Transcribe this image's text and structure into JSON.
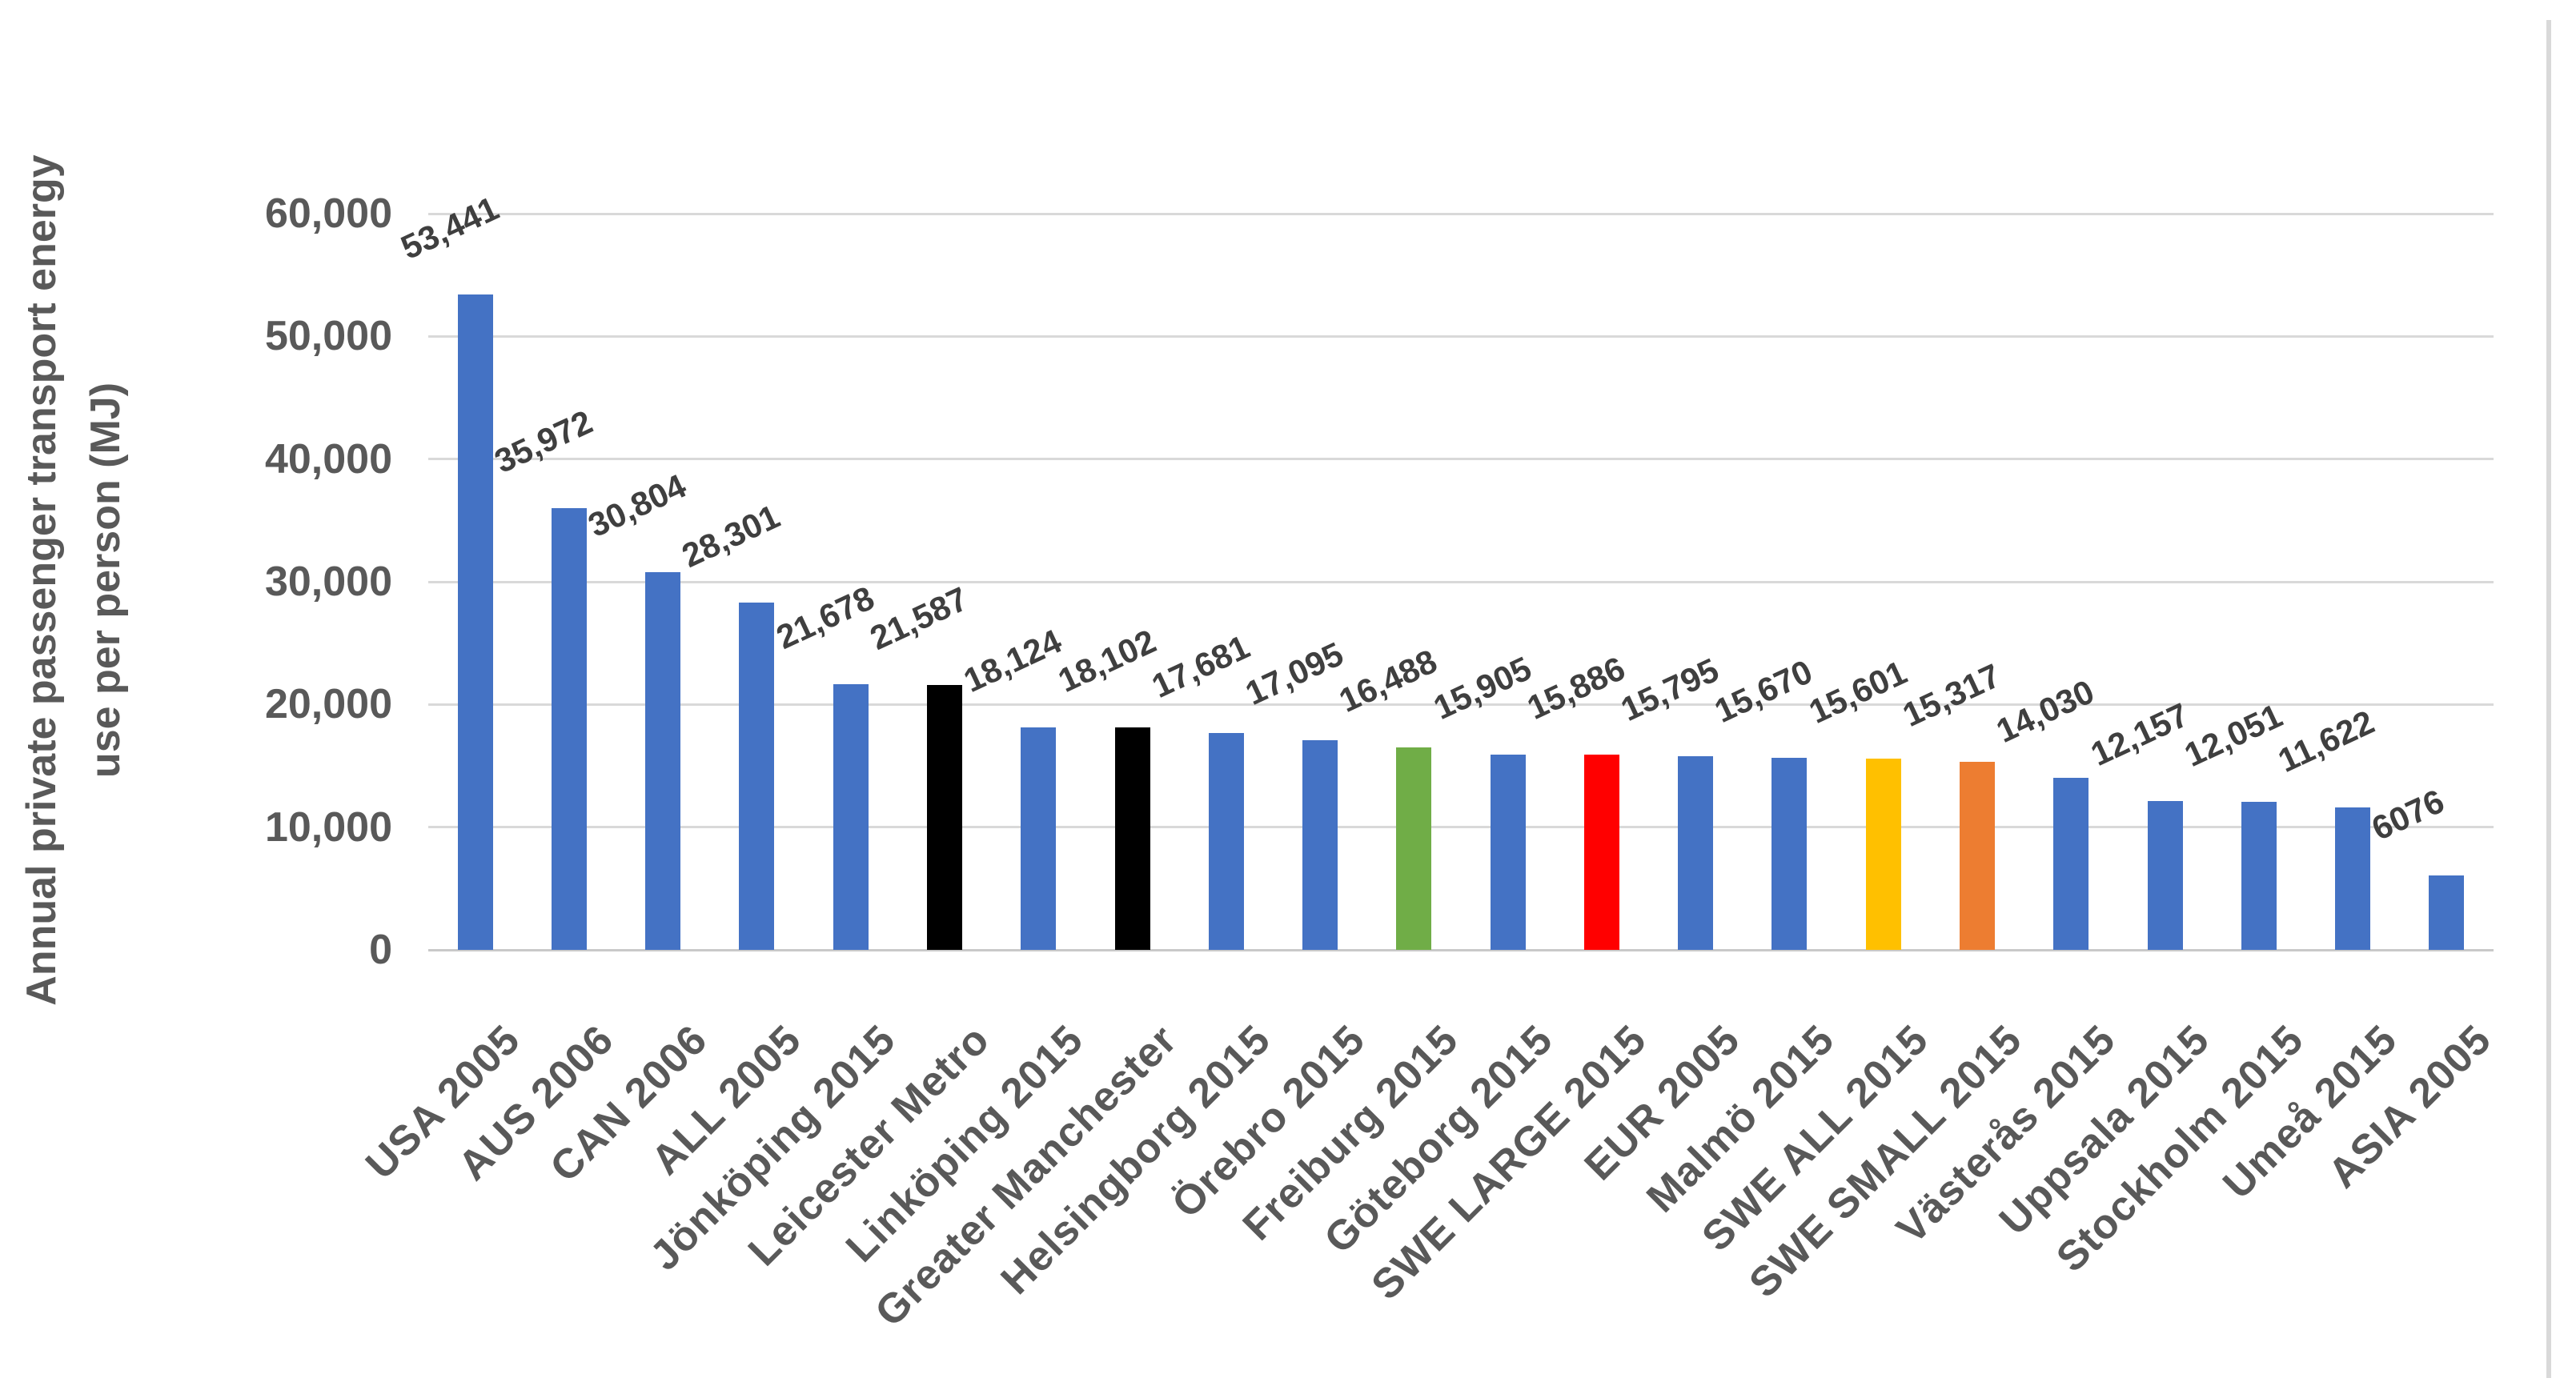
{
  "chart_data": {
    "type": "bar",
    "title": "",
    "xlabel": "",
    "ylabel": "Annual private passenger transport energy use per person (MJ)",
    "ylabel_line1": "Annual private passenger transport energy",
    "ylabel_line2": "use per person (MJ)",
    "ylim": [
      0,
      60000
    ],
    "ytick_interval": 10000,
    "ytick_labels": [
      "0",
      "10,000",
      "20,000",
      "30,000",
      "40,000",
      "50,000",
      "60,000"
    ],
    "grid": true,
    "legend": "none",
    "categories": [
      "USA 2005",
      "AUS 2006",
      "CAN 2006",
      "ALL 2005",
      "Jönköping 2015",
      "Leicester Metro",
      "Linköping 2015",
      "Greater Manchester",
      "Helsingborg 2015",
      "Örebro 2015",
      "Freiburg 2015",
      "Göteborg 2015",
      "SWE LARGE 2015",
      "EUR 2005",
      "Malmö 2015",
      "SWE ALL 2015",
      "SWE SMALL 2015",
      "Västerås 2015",
      "Uppsala 2015",
      "Stockholm 2015",
      "Umeå 2015",
      "ASIA 2005"
    ],
    "values": [
      53441,
      35972,
      30804,
      28301,
      21678,
      21587,
      18124,
      18102,
      17681,
      17095,
      16488,
      15905,
      15886,
      15795,
      15670,
      15601,
      15317,
      14030,
      12157,
      12051,
      11622,
      6076
    ],
    "value_labels": [
      "53,441",
      "35,972",
      "30,804",
      "28,301",
      "21,678",
      "21,587",
      "18,124",
      "18,102",
      "17,681",
      "17,095",
      "16,488",
      "15,905",
      "15,886",
      "15,795",
      "15,670",
      "15,601",
      "15,317",
      "14,030",
      "12,157",
      "12,051",
      "11,622",
      "6076"
    ],
    "bar_colors": [
      "#4472C4",
      "#4472C4",
      "#4472C4",
      "#4472C4",
      "#4472C4",
      "#000000",
      "#4472C4",
      "#000000",
      "#4472C4",
      "#4472C4",
      "#70AD47",
      "#4472C4",
      "#FF0000",
      "#4472C4",
      "#4472C4",
      "#FFC000",
      "#ED7D31",
      "#4472C4",
      "#4472C4",
      "#4472C4",
      "#4472C4",
      "#4472C4"
    ],
    "palette": {
      "default_bar": "#4472C4",
      "highlight_black": "#000000",
      "highlight_green": "#70AD47",
      "highlight_red": "#FF0000",
      "highlight_yellow": "#FFC000",
      "highlight_orange": "#ED7D31"
    },
    "colors": {
      "gridline": "#D9D9D9",
      "axis_line": "#C9C9C9",
      "axis_text": "#595959",
      "value_label_text": "#3F3F3F",
      "background": "#FFFFFF"
    }
  }
}
